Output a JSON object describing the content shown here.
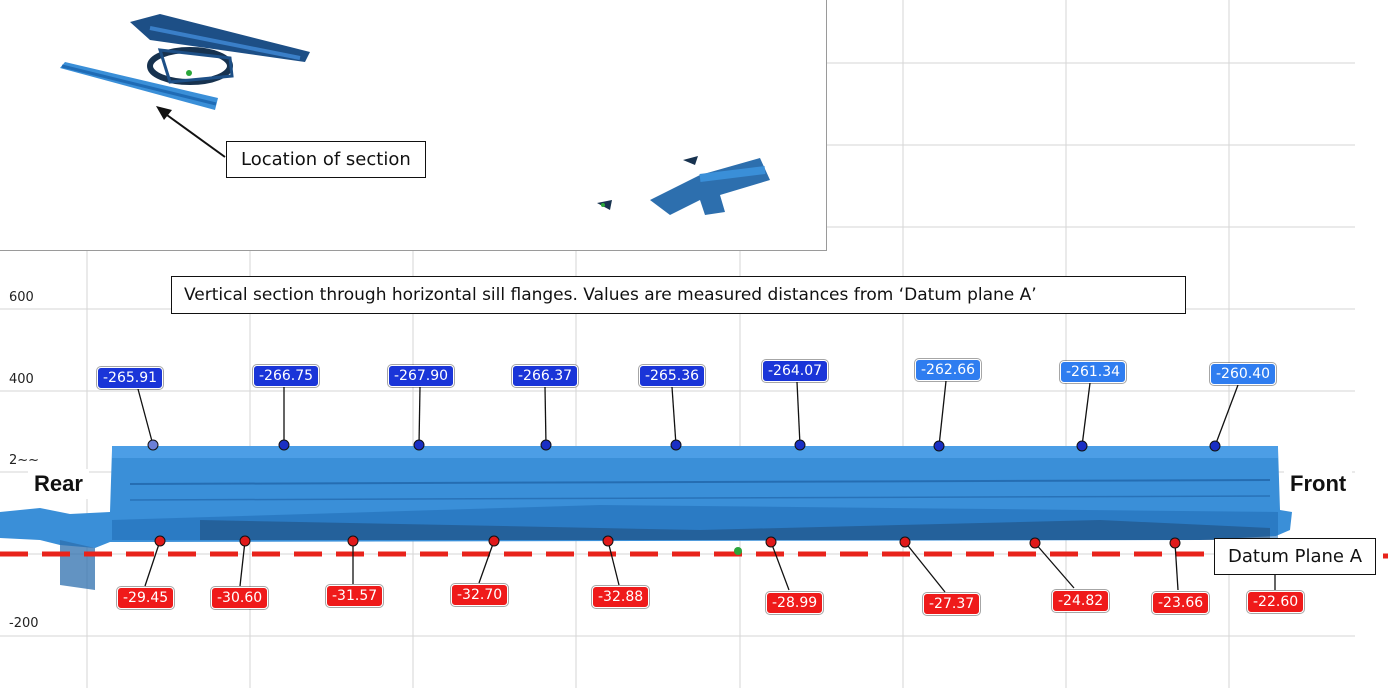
{
  "title": "Vertical section through horizontal sill flanges. Values are measured distances from ‘Datum plane A’",
  "inset": {
    "callout": "Location of section"
  },
  "axis": {
    "y_ticks": [
      "600",
      "400",
      "2~~",
      "-200"
    ]
  },
  "labels": {
    "rear": "Rear",
    "front": "Front",
    "datum": "Datum Plane A"
  },
  "upper_values": [
    "-265.91",
    "-266.75",
    "-267.90",
    "-266.37",
    "-265.36",
    "-264.07",
    "-262.66",
    "-261.34",
    "-260.40"
  ],
  "lower_values": [
    "-29.45",
    "-30.60",
    "-31.57",
    "-32.70",
    "-32.88",
    "-28.99",
    "-27.37",
    "-24.82",
    "-23.66",
    "-22.60"
  ],
  "colors": {
    "upper_tag": "#1a35d8",
    "lower_tag": "#ef1a1a",
    "scan": "#2d7fd0",
    "datum": "#e8231b"
  }
}
